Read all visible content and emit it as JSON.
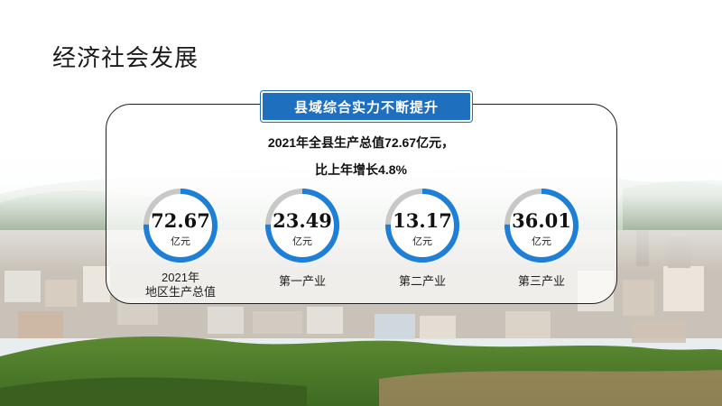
{
  "page": {
    "title": "经济社会发展"
  },
  "panel": {
    "badge": "县域综合实力不断提升",
    "headline_line1": "2021年全县生产总值72.67亿元，",
    "headline_line2": "比上年增长4.8%"
  },
  "stats": [
    {
      "value": "72.67",
      "unit": "亿元",
      "label_line1": "2021年",
      "label_line2": "地区生产总值"
    },
    {
      "value": "23.49",
      "unit": "亿元",
      "label_line1": "第一产业",
      "label_line2": ""
    },
    {
      "value": "13.17",
      "unit": "亿元",
      "label_line1": "第二产业",
      "label_line2": ""
    },
    {
      "value": "36.01",
      "unit": "亿元",
      "label_line1": "第三产业",
      "label_line2": ""
    }
  ],
  "colors": {
    "accent": "#1f6fbf",
    "ring_track": "#c8c8c8",
    "ring_fill": "#1e7fd6"
  }
}
